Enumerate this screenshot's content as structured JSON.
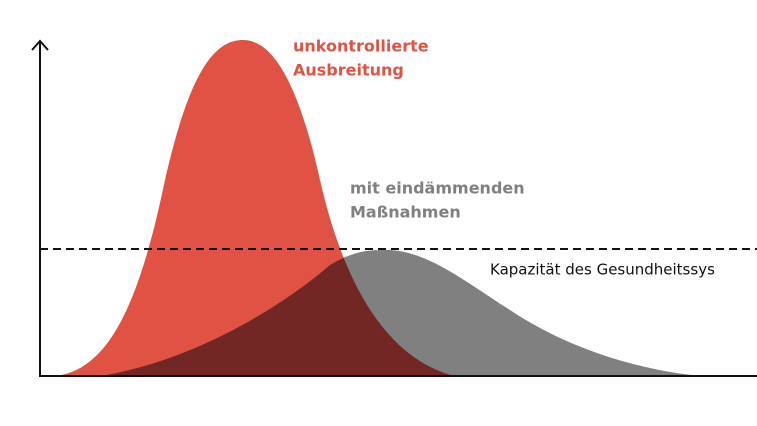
{
  "labels": {
    "uncontrolled": [
      "unkontrollierte",
      "Ausbreitung"
    ],
    "contained": [
      "mit eindämmenden",
      "Maßnahmen"
    ],
    "capacity": "Kapazität des Gesundheitssys"
  }
}
